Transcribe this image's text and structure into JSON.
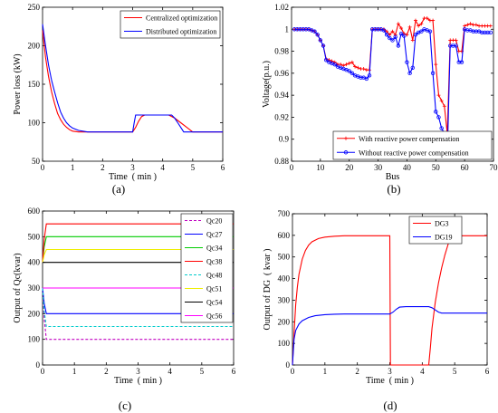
{
  "chart_data": [
    {
      "type": "line",
      "panel_label": "(a)",
      "xlabel": "Time  ( min )",
      "ylabel": "Power loss (kW)",
      "xlim": [
        0,
        6
      ],
      "ylim": [
        50,
        250
      ],
      "xticks": [
        0,
        1,
        2,
        3,
        4,
        5,
        6
      ],
      "yticks": [
        50,
        100,
        150,
        200,
        250
      ],
      "legend": "top-right",
      "series": [
        {
          "name": "Centralized optimization",
          "color": "#ff0000",
          "x": [
            0,
            0.1,
            0.2,
            0.3,
            0.4,
            0.5,
            0.6,
            0.7,
            0.8,
            0.9,
            1.0,
            1.2,
            1.5,
            2,
            2.5,
            3,
            3.1,
            3.2,
            3.3,
            3.4,
            3.5,
            4,
            4.2,
            4.4,
            4.6,
            4.8,
            5,
            6
          ],
          "y": [
            220,
            185,
            160,
            140,
            125,
            112,
            104,
            98,
            94,
            91,
            89,
            88,
            88,
            88,
            88,
            88,
            94,
            102,
            108,
            110,
            110,
            110,
            110,
            106,
            100,
            94,
            88,
            88
          ]
        },
        {
          "name": "Distributed optimization",
          "color": "#0000ff",
          "x": [
            0,
            0.1,
            0.2,
            0.3,
            0.4,
            0.5,
            0.6,
            0.7,
            0.8,
            0.9,
            1.0,
            1.2,
            1.5,
            2,
            2.5,
            3,
            3.05,
            3.1,
            3.2,
            3.5,
            4,
            4.3,
            4.4,
            4.5,
            4.6,
            4.7,
            5,
            6
          ],
          "y": [
            228,
            200,
            175,
            155,
            140,
            126,
            114,
            106,
            100,
            96,
            93,
            90,
            88,
            88,
            88,
            88,
            100,
            110,
            110,
            110,
            110,
            110,
            106,
            100,
            94,
            88,
            88,
            88
          ]
        }
      ]
    },
    {
      "type": "line",
      "panel_label": "(b)",
      "xlabel": "Bus",
      "ylabel": "Voltage(p.u.)",
      "xlim": [
        0,
        70
      ],
      "ylim": [
        0.88,
        1.02
      ],
      "xticks": [
        0,
        10,
        20,
        30,
        40,
        50,
        60,
        70
      ],
      "yticks": [
        0.88,
        0.9,
        0.92,
        0.94,
        0.96,
        0.98,
        1,
        1.02
      ],
      "legend": "bottom-right",
      "series": [
        {
          "name": "With reactive power compensation",
          "color": "#ff0000",
          "marker": "plus",
          "x": [
            1,
            2,
            3,
            4,
            5,
            6,
            7,
            8,
            9,
            10,
            11,
            12,
            13,
            14,
            15,
            16,
            17,
            18,
            19,
            20,
            21,
            22,
            23,
            24,
            25,
            26,
            27,
            28,
            29,
            30,
            31,
            32,
            33,
            34,
            35,
            36,
            37,
            38,
            39,
            40,
            41,
            42,
            43,
            44,
            45,
            46,
            47,
            48,
            49,
            50,
            51,
            52,
            53,
            54,
            55,
            56,
            57,
            58,
            59,
            60,
            61,
            62,
            63,
            64,
            65,
            66,
            67,
            68,
            69
          ],
          "y": [
            1,
            1,
            1,
            1,
            1,
            1,
            0.999,
            0.998,
            0.995,
            0.99,
            0.985,
            0.973,
            0.972,
            0.971,
            0.97,
            0.968,
            0.968,
            0.967,
            0.968,
            0.969,
            0.97,
            0.966,
            0.965,
            0.964,
            0.964,
            0.963,
            0.963,
            1,
            1,
            1,
            1,
            1,
            0.998,
            0.995,
            0.998,
            0.995,
            1.005,
            1.001,
            0.996,
            0.995,
            1.002,
            0.99,
            1.008,
            1.003,
            1.005,
            1.01,
            1.01,
            1.008,
            1.008,
            0.968,
            0.94,
            0.935,
            0.93,
            0.905,
            0.99,
            0.99,
            0.99,
            0.98,
            0.98,
            1.003,
            1.004,
            1.005,
            1.004,
            1.004,
            1.003,
            1.003,
            1.003,
            1.003,
            1.003
          ]
        },
        {
          "name": "Without reactive power compensation",
          "color": "#0000ff",
          "marker": "circle",
          "x": [
            1,
            2,
            3,
            4,
            5,
            6,
            7,
            8,
            9,
            10,
            11,
            12,
            13,
            14,
            15,
            16,
            17,
            18,
            19,
            20,
            21,
            22,
            23,
            24,
            25,
            26,
            27,
            28,
            29,
            30,
            31,
            32,
            33,
            34,
            35,
            36,
            37,
            38,
            39,
            40,
            41,
            42,
            43,
            44,
            45,
            46,
            47,
            48,
            49,
            50,
            51,
            52,
            53,
            54,
            55,
            56,
            57,
            58,
            59,
            60,
            61,
            62,
            63,
            64,
            65,
            66,
            67,
            68,
            69
          ],
          "y": [
            1,
            1,
            1,
            1,
            1,
            1,
            0.999,
            0.998,
            0.995,
            0.99,
            0.985,
            0.972,
            0.97,
            0.969,
            0.968,
            0.966,
            0.965,
            0.964,
            0.963,
            0.962,
            0.96,
            0.958,
            0.957,
            0.956,
            0.956,
            0.955,
            0.958,
            1,
            1,
            1,
            1,
            0.999,
            0.995,
            0.992,
            0.99,
            0.993,
            0.985,
            0.996,
            0.994,
            0.97,
            0.96,
            0.965,
            0.995,
            0.997,
            0.998,
            1,
            0.999,
            0.998,
            0.96,
            0.925,
            0.92,
            0.91,
            0.905,
            0.885,
            0.985,
            0.985,
            0.985,
            0.97,
            0.97,
            1,
            0.999,
            0.999,
            0.998,
            0.998,
            0.998,
            0.997,
            0.997,
            0.997,
            0.997
          ]
        }
      ]
    },
    {
      "type": "line",
      "panel_label": "(c)",
      "xlabel": "Time  ( min )",
      "ylabel": "Output of Qc(kvar)",
      "xlim": [
        0,
        6
      ],
      "ylim": [
        0,
        600
      ],
      "xticks": [
        0,
        1,
        2,
        3,
        4,
        5,
        6
      ],
      "yticks": [
        0,
        100,
        200,
        300,
        400,
        500,
        600
      ],
      "legend": "top-right",
      "series": [
        {
          "name": "Qc20",
          "color": "#c000c0",
          "dash": true,
          "steady": 100,
          "start": 300
        },
        {
          "name": "Qc27",
          "color": "#0000ff",
          "dash": false,
          "steady": 200,
          "start": 300
        },
        {
          "name": "Qc34",
          "color": "#00cc00",
          "dash": false,
          "steady": 500,
          "start": 400
        },
        {
          "name": "Qc38",
          "color": "#ff0000",
          "dash": false,
          "steady": 550,
          "start": 400
        },
        {
          "name": "Qc48",
          "color": "#00cccc",
          "dash": true,
          "steady": 150,
          "start": 300
        },
        {
          "name": "Qc51",
          "color": "#eeee00",
          "dash": false,
          "steady": 450,
          "start": 400
        },
        {
          "name": "Qc54",
          "color": "#000000",
          "dash": false,
          "steady": 400,
          "start": 400
        },
        {
          "name": "Qc56",
          "color": "#ff00ff",
          "dash": false,
          "steady": 300,
          "start": 300
        }
      ]
    },
    {
      "type": "line",
      "panel_label": "(d)",
      "xlabel": "Time  ( min )",
      "ylabel": "Output of DG  ( kvar )",
      "xlim": [
        0,
        6
      ],
      "ylim": [
        0,
        700
      ],
      "xticks": [
        0,
        1,
        2,
        3,
        4,
        5,
        6
      ],
      "yticks": [
        0,
        100,
        200,
        300,
        400,
        500,
        600,
        700
      ],
      "legend": "top-right",
      "series": [
        {
          "name": "DG3",
          "color": "#ff0000",
          "x": [
            0,
            0.05,
            0.1,
            0.15,
            0.2,
            0.3,
            0.4,
            0.5,
            0.6,
            0.8,
            1.0,
            1.3,
            1.6,
            2,
            2.5,
            3.0,
            3.02,
            3.1,
            3.5,
            4.0,
            4.2,
            4.25,
            4.3,
            4.4,
            4.5,
            4.6,
            4.7,
            4.8,
            4.9,
            5,
            6
          ],
          "y": [
            0,
            150,
            280,
            360,
            420,
            490,
            530,
            555,
            570,
            585,
            592,
            596,
            598,
            598,
            598,
            598,
            0,
            0,
            0,
            0,
            0,
            80,
            170,
            290,
            380,
            450,
            510,
            560,
            590,
            598,
            598
          ]
        },
        {
          "name": "DG19",
          "color": "#0000ff",
          "x": [
            0,
            0.05,
            0.1,
            0.2,
            0.3,
            0.5,
            0.7,
            1.0,
            1.3,
            1.6,
            2,
            2.5,
            3.0,
            3.1,
            3.2,
            3.3,
            3.5,
            4.0,
            4.2,
            4.3,
            4.4,
            4.5,
            4.6,
            5,
            6
          ],
          "y": [
            0,
            120,
            160,
            190,
            205,
            220,
            228,
            233,
            235,
            236,
            236,
            236,
            236,
            245,
            258,
            268,
            270,
            270,
            270,
            265,
            255,
            245,
            240,
            240,
            240
          ]
        }
      ]
    }
  ]
}
